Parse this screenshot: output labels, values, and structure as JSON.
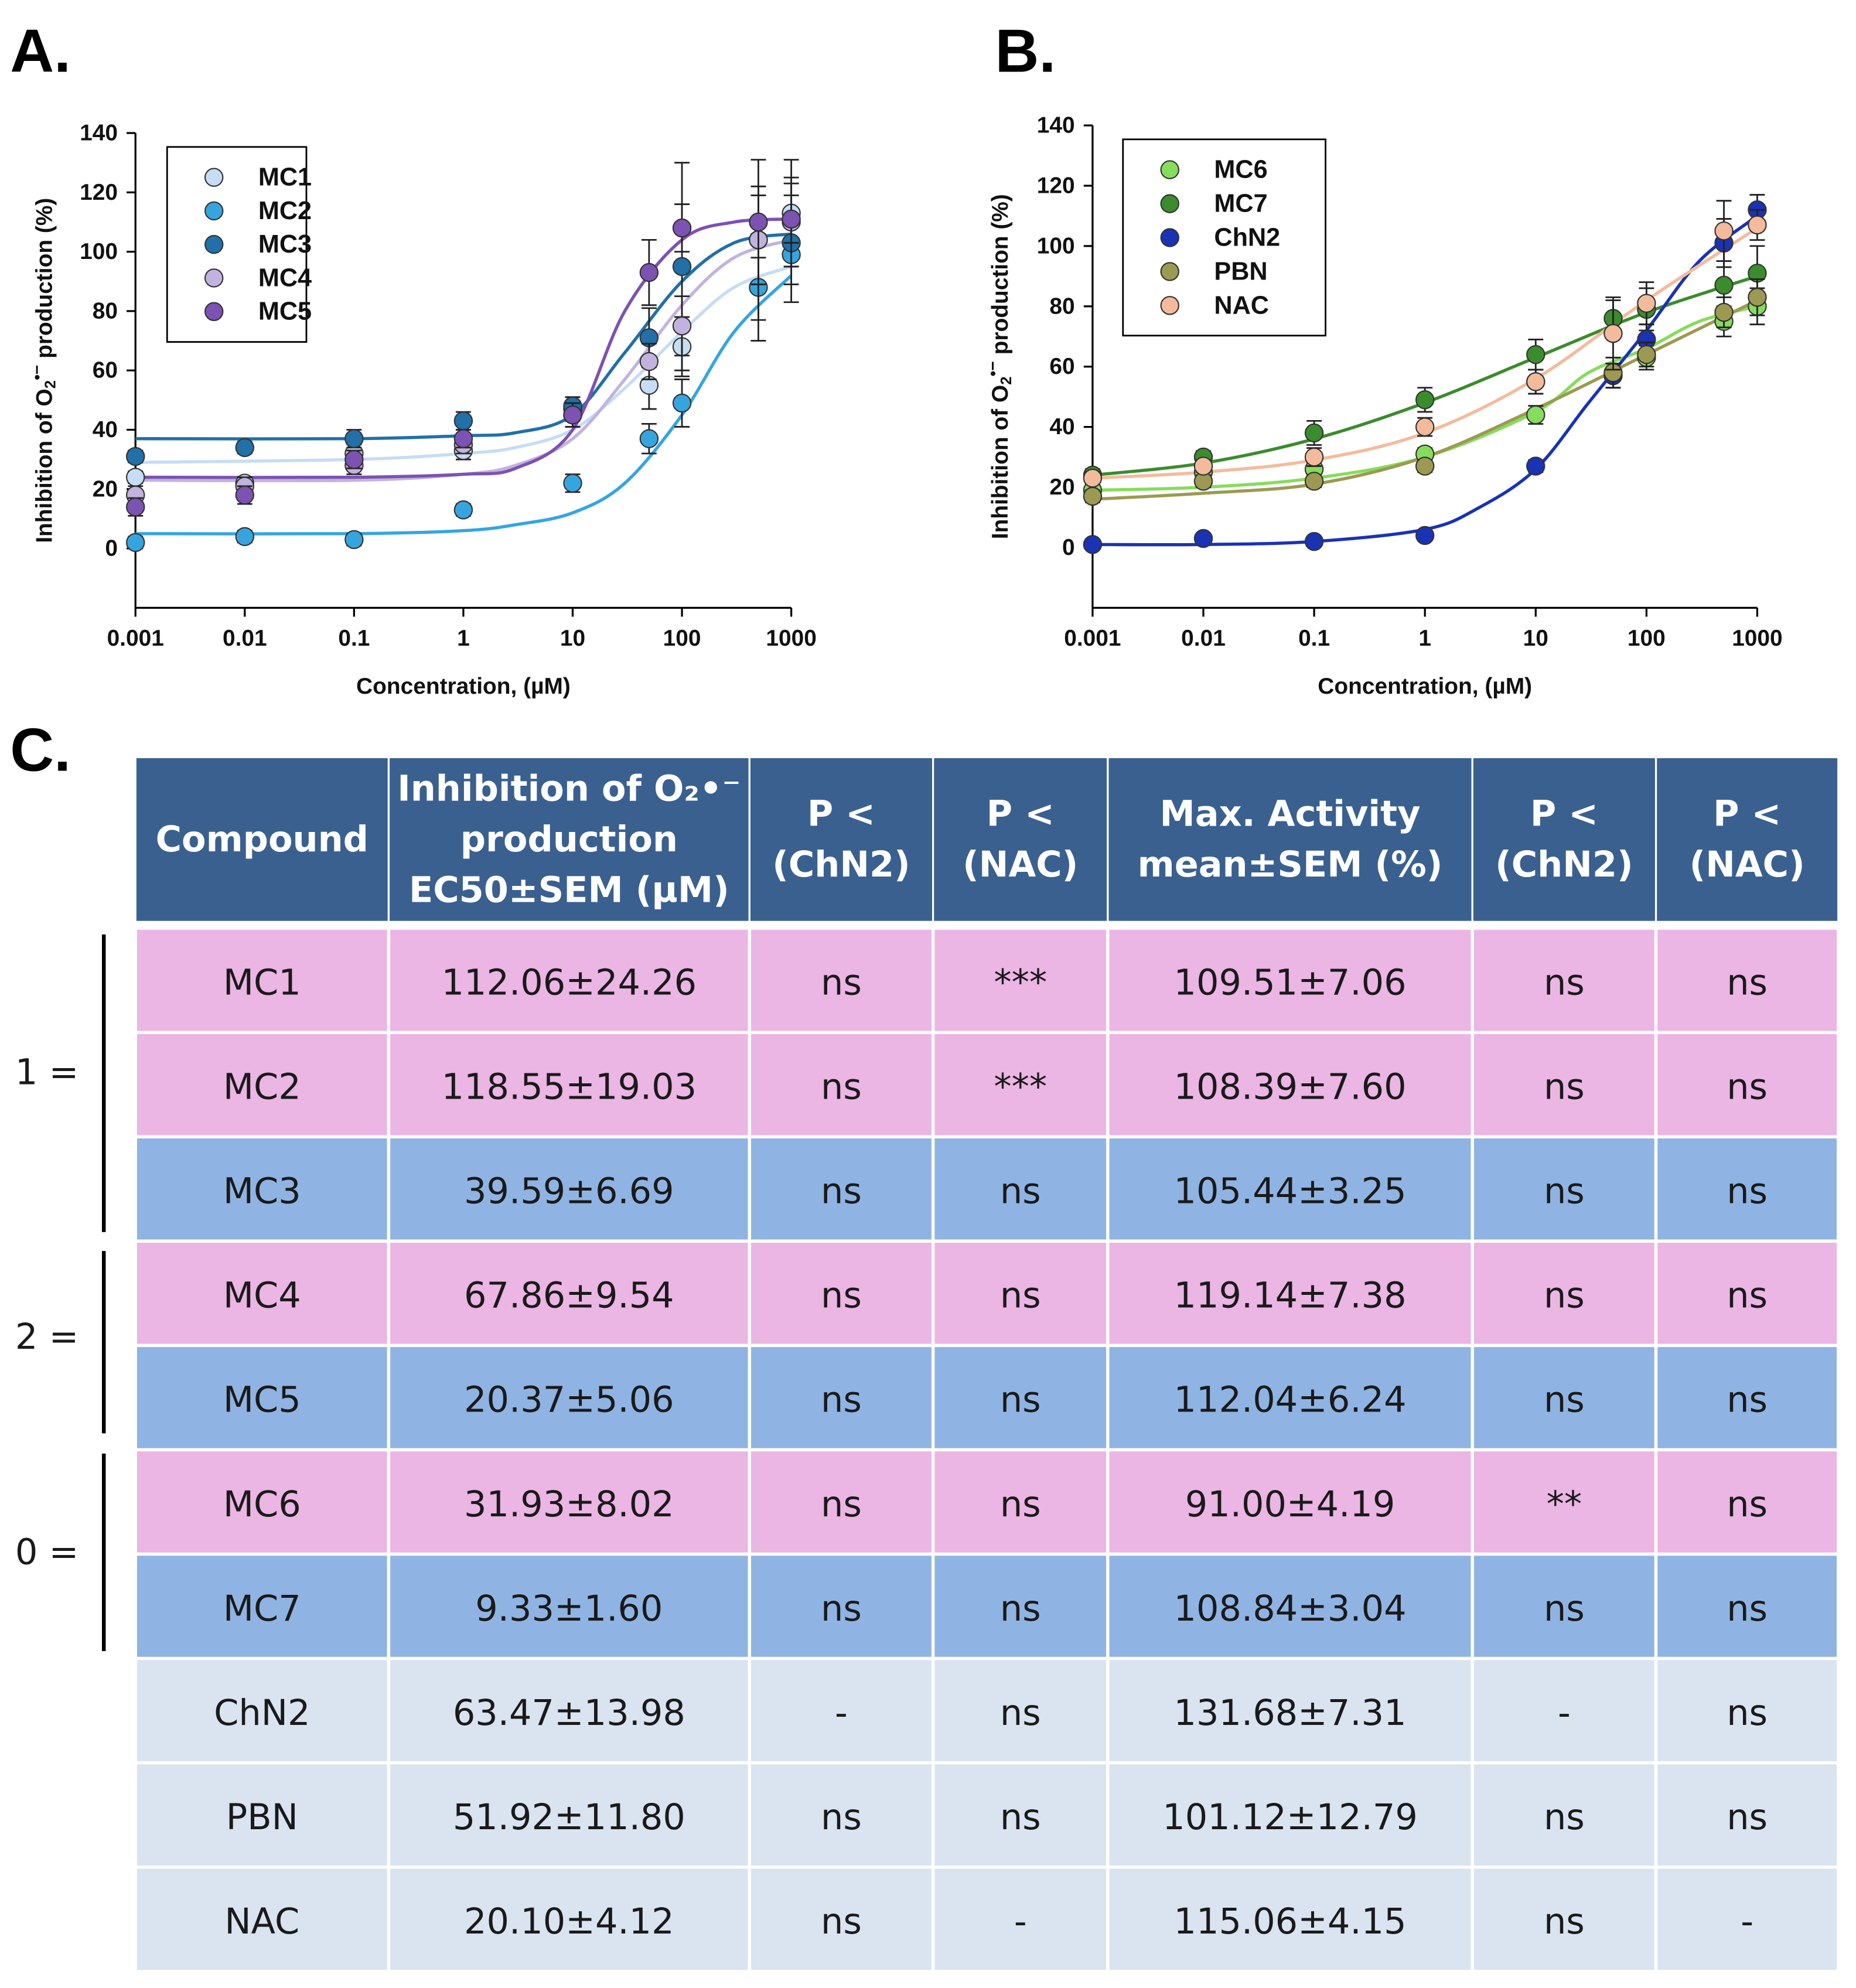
{
  "chart_data": [
    {
      "type": "scatter",
      "panel_label": "A.",
      "xlabel": "Concentration, (µM)",
      "ylabel": {
        "before": "Inhibition of O",
        "sub": "2",
        "sup": "•−",
        "after": " production (%)"
      },
      "xscale": "log",
      "xlim": [
        0.001,
        1000
      ],
      "xticks": [
        0.001,
        0.01,
        0.1,
        1,
        10,
        100,
        1000
      ],
      "ylim": [
        -20,
        140
      ],
      "yticks": [
        0,
        20,
        40,
        60,
        80,
        100,
        120,
        140
      ],
      "x": [
        0.001,
        0.01,
        0.1,
        1,
        10,
        50,
        100,
        500,
        1000
      ],
      "series": [
        {
          "name": "MC1",
          "color": "#c6ddf3",
          "values": [
            24,
            22,
            32,
            33,
            47,
            55,
            68,
            104,
            113
          ],
          "errors": [
            2,
            2,
            3,
            3,
            4,
            8,
            10,
            15,
            18
          ],
          "fit": {
            "x": [
              0.001,
              0.1,
              1,
              3,
              10,
              30,
              100,
              300,
              1000
            ],
            "values": [
              29,
              30,
              32,
              34,
              40,
              54,
              73,
              88,
              95
            ]
          }
        },
        {
          "name": "MC2",
          "color": "#35a5e0",
          "values": [
            2,
            4,
            3,
            13,
            22,
            37,
            49,
            88,
            99
          ],
          "errors": [
            2,
            2,
            2,
            2,
            3,
            5,
            8,
            18,
            10
          ],
          "fit": {
            "x": [
              0.001,
              0.1,
              1,
              3,
              10,
              30,
              100,
              300,
              1000
            ],
            "values": [
              5,
              5,
              6,
              8,
              12,
              22,
              45,
              73,
              92
            ]
          }
        },
        {
          "name": "MC3",
          "color": "#2170a8",
          "values": [
            31,
            34,
            37,
            43,
            48,
            71,
            95,
            104,
            103
          ],
          "errors": [
            2,
            2,
            3,
            3,
            3,
            10,
            35,
            27,
            20
          ],
          "fit": {
            "x": [
              0.001,
              0.1,
              1,
              3,
              10,
              30,
              100,
              300,
              1000
            ],
            "values": [
              37,
              37,
              38,
              39,
              45,
              66,
              90,
              103,
              106
            ]
          }
        },
        {
          "name": "MC4",
          "color": "#c2b3de",
          "values": [
            18,
            21,
            28,
            35,
            45,
            63,
            75,
            104,
            110
          ],
          "errors": [
            3,
            3,
            3,
            3,
            4,
            6,
            10,
            15,
            15
          ],
          "fit": {
            "x": [
              0.001,
              0.1,
              1,
              3,
              10,
              30,
              100,
              300,
              1000
            ],
            "values": [
              23,
              23,
              25,
              28,
              37,
              57,
              82,
              98,
              104
            ]
          }
        },
        {
          "name": "MC5",
          "color": "#7c52b2",
          "values": [
            14,
            18,
            30,
            37,
            45,
            93,
            108,
            110,
            111
          ],
          "errors": [
            3,
            3,
            3,
            3,
            4,
            11,
            8,
            12,
            8
          ],
          "fit": {
            "x": [
              0.001,
              0.1,
              1,
              3,
              10,
              30,
              100,
              300,
              1000
            ],
            "values": [
              24,
              24,
              25,
              27,
              40,
              80,
              104,
              110,
              111
            ]
          }
        }
      ]
    },
    {
      "type": "scatter",
      "panel_label": "B.",
      "xlabel": "Concentration, (µM)",
      "ylabel": {
        "before": "Inhibition of O",
        "sub": "2",
        "sup": "•−",
        "after": " production (%)"
      },
      "xscale": "log",
      "xlim": [
        0.001,
        1000
      ],
      "xticks": [
        0.001,
        0.01,
        0.1,
        1,
        10,
        100,
        1000
      ],
      "ylim": [
        -20,
        140
      ],
      "yticks": [
        0,
        20,
        40,
        60,
        80,
        100,
        120,
        140
      ],
      "x": [
        0.001,
        0.01,
        0.1,
        1,
        10,
        50,
        100,
        500,
        1000
      ],
      "series": [
        {
          "name": "MC6",
          "color": "#86dc5c",
          "values": [
            19,
            25,
            26,
            31,
            44,
            57,
            63,
            75,
            80
          ],
          "errors": [
            2,
            2,
            2,
            2,
            3,
            4,
            4,
            5,
            6
          ],
          "fit": {
            "x": [
              0.001,
              0.01,
              0.1,
              1,
              10,
              30,
              100,
              300,
              1000
            ],
            "values": [
              19,
              20,
              23,
              30,
              45,
              58,
              66,
              75,
              80
            ]
          }
        },
        {
          "name": "MC7",
          "color": "#3b8c2c",
          "values": [
            24,
            30,
            38,
            49,
            64,
            76,
            79,
            87,
            91
          ],
          "errors": [
            2,
            2,
            4,
            4,
            5,
            6,
            7,
            8,
            9
          ],
          "fit": {
            "x": [
              0.001,
              0.01,
              0.1,
              1,
              10,
              100,
              1000
            ],
            "values": [
              24,
              28,
              36,
              48,
              63,
              78,
              90
            ]
          }
        },
        {
          "name": "ChN2",
          "color": "#1a32b4",
          "values": [
            1,
            3,
            2,
            4,
            27,
            57,
            69,
            101,
            112
          ],
          "errors": [
            1,
            1,
            1,
            1,
            2,
            4,
            5,
            8,
            5
          ],
          "fit": {
            "x": [
              0.001,
              0.01,
              0.1,
              1,
              3,
              10,
              30,
              100,
              300,
              1000
            ],
            "values": [
              1,
              1,
              2,
              6,
              13,
              26,
              48,
              72,
              95,
              110
            ]
          }
        },
        {
          "name": "PBN",
          "color": "#9c9a52",
          "values": [
            17,
            22,
            22,
            27,
            55,
            58,
            64,
            78,
            83
          ],
          "errors": [
            2,
            2,
            2,
            2,
            4,
            5,
            4,
            5,
            6
          ],
          "fit": {
            "x": [
              0.001,
              0.01,
              0.1,
              1,
              10,
              100,
              1000
            ],
            "values": [
              16,
              18,
              21,
              30,
              46,
              64,
              82
            ]
          }
        },
        {
          "name": "NAC",
          "color": "#f3bb9c",
          "values": [
            23,
            27,
            30,
            40,
            55,
            71,
            81,
            105,
            107
          ],
          "errors": [
            2,
            2,
            3,
            3,
            4,
            12,
            7,
            10,
            5
          ],
          "fit": {
            "x": [
              0.001,
              0.01,
              0.1,
              1,
              10,
              100,
              1000
            ],
            "values": [
              23,
              25,
              29,
              38,
              56,
              82,
              106
            ]
          }
        }
      ]
    }
  ],
  "table": {
    "panel_label": "C.",
    "header": [
      [
        "Compound"
      ],
      [
        "Inhibition of O₂•⁻",
        "production",
        "EC50±SEM (µM)"
      ],
      [
        "P <",
        "(ChN2)"
      ],
      [
        "P <",
        "(NAC)"
      ],
      [
        "Max. Activity",
        "mean±SEM (%)"
      ],
      [
        "P <",
        "(ChN2)"
      ],
      [
        "P <",
        "(NAC)"
      ]
    ],
    "header_color": "#3a6090",
    "groups": [
      "1 =",
      "2 =",
      "0 ="
    ],
    "rows": [
      {
        "color": "#ebb5e4",
        "cells": [
          "MC1",
          "112.06±24.26",
          "ns",
          "***",
          "109.51±7.06",
          "ns",
          "ns"
        ]
      },
      {
        "color": "#ebb5e4",
        "cells": [
          "MC2",
          "118.55±19.03",
          "ns",
          "***",
          "108.39±7.60",
          "ns",
          "ns"
        ]
      },
      {
        "color": "#8fb4e3",
        "cells": [
          "MC3",
          "39.59±6.69",
          "ns",
          "ns",
          "105.44±3.25",
          "ns",
          "ns"
        ]
      },
      {
        "color": "#ebb5e4",
        "cells": [
          "MC4",
          "67.86±9.54",
          "ns",
          "ns",
          "119.14±7.38",
          "ns",
          "ns"
        ]
      },
      {
        "color": "#8fb4e3",
        "cells": [
          "MC5",
          "20.37±5.06",
          "ns",
          "ns",
          "112.04±6.24",
          "ns",
          "ns"
        ]
      },
      {
        "color": "#ebb5e4",
        "cells": [
          "MC6",
          "31.93±8.02",
          "ns",
          "ns",
          "91.00±4.19",
          "**",
          "ns"
        ]
      },
      {
        "color": "#8fb4e3",
        "cells": [
          "MC7",
          "9.33±1.60",
          "ns",
          "ns",
          "108.84±3.04",
          "ns",
          "ns"
        ]
      },
      {
        "color": "#dae3f0",
        "cells": [
          "ChN2",
          "63.47±13.98",
          "-",
          "ns",
          "131.68±7.31",
          "-",
          "ns"
        ]
      },
      {
        "color": "#dae3f0",
        "cells": [
          "PBN",
          "51.92±11.80",
          "ns",
          "ns",
          "101.12±12.79",
          "ns",
          "ns"
        ]
      },
      {
        "color": "#dae3f0",
        "cells": [
          "NAC",
          "20.10±4.12",
          "ns",
          "-",
          "115.06±4.15",
          "ns",
          "-"
        ]
      }
    ]
  }
}
